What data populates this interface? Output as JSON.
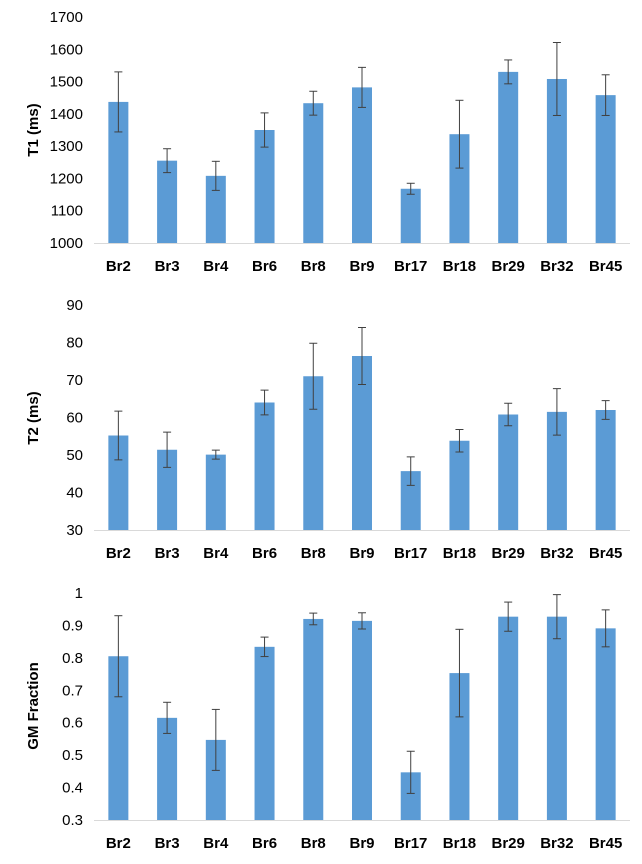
{
  "colors": {
    "bar": "#5b9bd5",
    "error": "#404040",
    "axis": "#d9d9d9"
  },
  "chart_data": [
    {
      "type": "bar",
      "ylabel": "T1 (ms)",
      "ylim": [
        1000,
        1700
      ],
      "yticks": [
        1000,
        1100,
        1200,
        1300,
        1400,
        1500,
        1600,
        1700
      ],
      "ytick_labels": [
        "1000",
        "1100",
        "1200",
        "1300",
        "1400",
        "1500",
        "1600",
        "1700"
      ],
      "categories": [
        "Br2",
        "Br3",
        "Br4",
        "Br6",
        "Br8",
        "Br9",
        "Br17",
        "Br18",
        "Br29",
        "Br32",
        "Br45"
      ],
      "values": [
        1437,
        1255,
        1208,
        1350,
        1433,
        1482,
        1168,
        1337,
        1530,
        1508,
        1458
      ],
      "errors": [
        93,
        37,
        45,
        53,
        37,
        62,
        17,
        105,
        37,
        113,
        63
      ]
    },
    {
      "type": "bar",
      "ylabel": "T2 (ms)",
      "ylim": [
        30,
        90
      ],
      "yticks": [
        30,
        40,
        50,
        60,
        70,
        80,
        90
      ],
      "ytick_labels": [
        "30",
        "40",
        "50",
        "60",
        "70",
        "80",
        "90"
      ],
      "categories": [
        "Br2",
        "Br3",
        "Br4",
        "Br6",
        "Br8",
        "Br9",
        "Br17",
        "Br18",
        "Br29",
        "Br32",
        "Br45"
      ],
      "values": [
        55.2,
        51.4,
        50.1,
        64.0,
        71.0,
        76.4,
        45.7,
        53.8,
        60.8,
        61.5,
        62.0
      ],
      "errors": [
        6.5,
        4.7,
        1.2,
        3.3,
        8.8,
        7.6,
        3.8,
        3.0,
        3.0,
        6.2,
        2.5
      ]
    },
    {
      "type": "bar",
      "ylabel": "GM Fraction",
      "ylim": [
        0.3,
        1.0
      ],
      "yticks": [
        0.3,
        0.4,
        0.5,
        0.6,
        0.7,
        0.8,
        0.9,
        1.0
      ],
      "ytick_labels": [
        "0.3",
        "0.4",
        "0.5",
        "0.6",
        "0.7",
        "0.8",
        "0.9",
        "1"
      ],
      "categories": [
        "Br2",
        "Br3",
        "Br4",
        "Br6",
        "Br8",
        "Br9",
        "Br17",
        "Br18",
        "Br29",
        "Br32",
        "Br45"
      ],
      "values": [
        0.805,
        0.615,
        0.547,
        0.834,
        0.92,
        0.914,
        0.447,
        0.753,
        0.927,
        0.927,
        0.891
      ],
      "errors": [
        0.125,
        0.048,
        0.094,
        0.03,
        0.018,
        0.025,
        0.065,
        0.135,
        0.045,
        0.068,
        0.057
      ]
    }
  ]
}
